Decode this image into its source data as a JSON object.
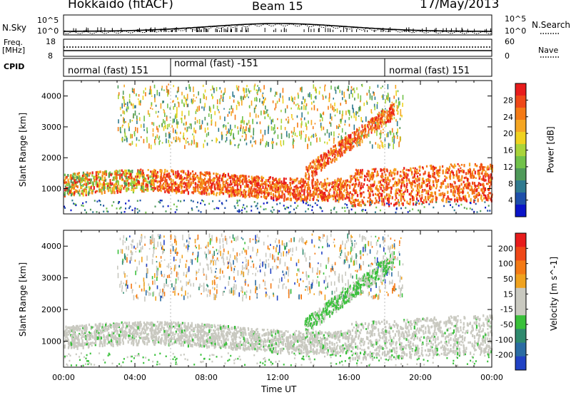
{
  "header": {
    "station": "Hokkaido (fitACF)",
    "beam": "Beam 15",
    "date": "17/May/2013"
  },
  "panels": {
    "sky_label": "N.Sky",
    "sky_ticks": [
      "10^5",
      "10^0"
    ],
    "search_label": "N.Search",
    "search_ticks": [
      "10^5",
      "10^0"
    ],
    "freq_label_1": "Freq.",
    "freq_label_2": "[MHz]",
    "freq_ticks": [
      "18",
      "8"
    ],
    "nave_label": "Nave",
    "nave_ticks": [
      "60",
      "0"
    ],
    "cpid_label": "CPID",
    "cpid_modes": [
      {
        "label": "normal (fast) 151",
        "start_hour": 0
      },
      {
        "label": "normal (fast) -151",
        "start_hour": 6
      },
      {
        "label": "normal (fast) 151",
        "start_hour": 18
      }
    ]
  },
  "chart_data": [
    {
      "type": "heatmap",
      "quantity": "Power",
      "ylabel": "Slant Range [km]",
      "xlabel": "",
      "xlim": [
        0,
        24
      ],
      "ylim": [
        180,
        4500
      ],
      "yticks": [
        "4000",
        "3000",
        "2000",
        "1000"
      ],
      "colorbar": {
        "label": "Power [dB]",
        "ticks": [
          "28",
          "24",
          "20",
          "16",
          "12",
          "8",
          "4"
        ],
        "range": [
          0,
          30
        ],
        "colors": [
          "#0a14c8",
          "#1e4faa",
          "#2f7a8f",
          "#4f9a5a",
          "#71c24a",
          "#a9d43a",
          "#f0d21f",
          "#f5a623",
          "#f47a15",
          "#ef4818",
          "#e81c1c"
        ]
      },
      "echo_regions": [
        {
          "hours": [
            0,
            6
          ],
          "range_km": [
            800,
            1700
          ],
          "dominant": "green/red mix"
        },
        {
          "hours": [
            6,
            16
          ],
          "range_km": [
            700,
            1600
          ],
          "dominant": "orange/red"
        },
        {
          "hours": [
            16,
            24
          ],
          "range_km": [
            600,
            1800
          ],
          "dominant": "red"
        },
        {
          "hours": [
            4,
            14
          ],
          "range_km": [
            2600,
            4200
          ],
          "dominant": "green/orange scatter"
        }
      ]
    },
    {
      "type": "heatmap",
      "quantity": "Velocity",
      "ylabel": "Slant Range [km]",
      "xlabel": "Time UT",
      "xlim": [
        0,
        24
      ],
      "ylim": [
        180,
        4500
      ],
      "xticks": [
        "00:00",
        "04:00",
        "08:00",
        "12:00",
        "16:00",
        "20:00",
        "00:00"
      ],
      "yticks": [
        "4000",
        "3000",
        "2000",
        "1000"
      ],
      "colorbar": {
        "label": "Velocity [m s^-1]",
        "ticks": [
          "200",
          "100",
          "50",
          "15",
          "-15",
          "-50",
          "-100",
          "-200"
        ],
        "range": [
          -250,
          250
        ],
        "colors": [
          "#2142c4",
          "#2b6ca3",
          "#2f8a6e",
          "#39c03a",
          "#c9c9c0",
          "#c9c9c0",
          "#f0a21f",
          "#f47a15",
          "#ef4818",
          "#e81c1c"
        ]
      },
      "echo_regions": [
        {
          "hours": [
            0,
            24
          ],
          "range_km": [
            700,
            1600
          ],
          "dominant": "gray (ground scatter)"
        },
        {
          "hours": [
            15,
            20
          ],
          "range_km": [
            1000,
            3500
          ],
          "dominant": "green"
        },
        {
          "hours": [
            3,
            15
          ],
          "range_km": [
            2600,
            4200
          ],
          "dominant": "orange/gray scatter"
        }
      ]
    }
  ]
}
